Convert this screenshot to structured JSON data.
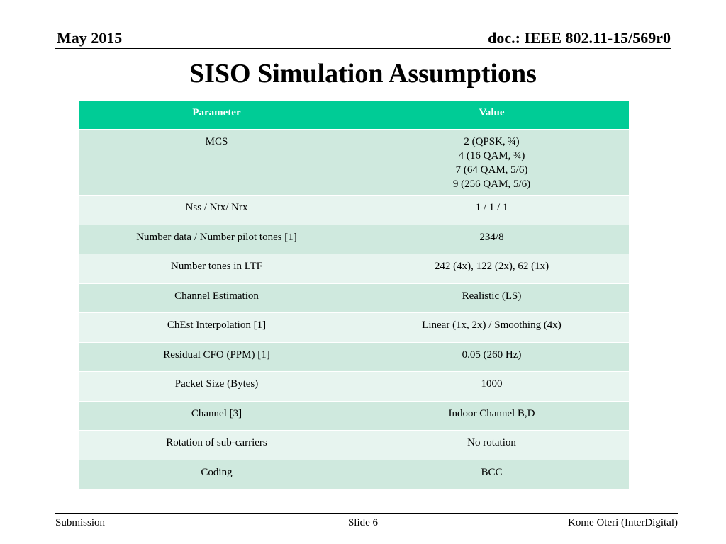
{
  "header": {
    "date": "May 2015",
    "doc_id": "doc.: IEEE 802.11-15/569r0"
  },
  "title": "SISO Simulation Assumptions",
  "table": {
    "columns": [
      "Parameter",
      "Value"
    ],
    "rows": [
      {
        "parameter": "MCS",
        "value_lines": [
          "2 (QPSK, ¾)",
          "4 (16 QAM, ¾)",
          "7 (64 QAM, 5/6)",
          "9 (256 QAM, 5/6)"
        ]
      },
      {
        "parameter": "Nss / Ntx/ Nrx",
        "value": "1 / 1 / 1"
      },
      {
        "parameter": "Number data / Number pilot tones [1]",
        "value": "234/8"
      },
      {
        "parameter": "Number tones in LTF",
        "value": "242 (4x), 122 (2x), 62 (1x)"
      },
      {
        "parameter": "Channel Estimation",
        "value": "Realistic (LS)"
      },
      {
        "parameter": "ChEst Interpolation [1]",
        "value": "Linear (1x, 2x) / Smoothing (4x)"
      },
      {
        "parameter": "Residual CFO (PPM) [1]",
        "value": "0.05 (260 Hz)"
      },
      {
        "parameter": "Packet Size (Bytes)",
        "value": "1000"
      },
      {
        "parameter": "Channel [3]",
        "value": "Indoor Channel B,D"
      },
      {
        "parameter": "Rotation of sub-carriers",
        "value": "No rotation"
      },
      {
        "parameter": "Coding",
        "value": "BCC"
      }
    ]
  },
  "footer": {
    "left": "Submission",
    "center": "Slide 6",
    "right": "Kome Oteri (InterDigital)"
  },
  "colors": {
    "header_fill": "#00cc96",
    "row_odd": "#cfe9de",
    "row_even": "#e7f4ef"
  }
}
